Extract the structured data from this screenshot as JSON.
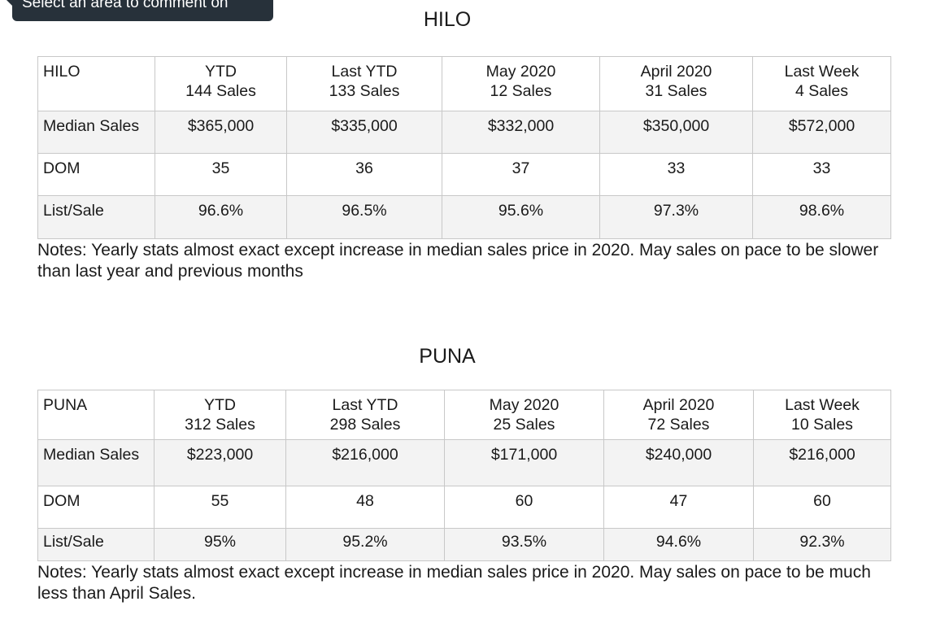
{
  "tooltip": {
    "text": "Select an area to comment on"
  },
  "sections": [
    {
      "id": "hilo",
      "title": "HILO",
      "table": {
        "header": [
          {
            "line1": "HILO",
            "line2": ""
          },
          {
            "line1": "YTD",
            "line2": "144 Sales"
          },
          {
            "line1": "Last YTD",
            "line2": "133 Sales"
          },
          {
            "line1": "May 2020",
            "line2": "12 Sales"
          },
          {
            "line1": "April 2020",
            "line2": "31 Sales"
          },
          {
            "line1": "Last Week",
            "line2": "4 Sales"
          }
        ],
        "rows": [
          {
            "label": "Median Sales",
            "values": [
              "$365,000",
              "$335,000",
              "$332,000",
              "$350,000",
              "$572,000"
            ]
          },
          {
            "label": "DOM",
            "values": [
              "35",
              "36",
              "37",
              "33",
              "33"
            ]
          },
          {
            "label": "List/Sale",
            "values": [
              "96.6%",
              "96.5%",
              "95.6%",
              "97.3%",
              "98.6%"
            ]
          }
        ]
      },
      "notes": "Notes: Yearly stats almost exact except increase in median sales price in 2020. May sales on pace to be slower than last year and previous months"
    },
    {
      "id": "puna",
      "title": "PUNA",
      "table": {
        "header": [
          {
            "line1": "PUNA",
            "line2": ""
          },
          {
            "line1": "YTD",
            "line2": "312 Sales"
          },
          {
            "line1": "Last YTD",
            "line2": "298 Sales"
          },
          {
            "line1": "May 2020",
            "line2": "25 Sales"
          },
          {
            "line1": "April 2020",
            "line2": "72 Sales"
          },
          {
            "line1": "Last Week",
            "line2": "10 Sales"
          }
        ],
        "rows": [
          {
            "label": "Median Sales",
            "values": [
              "$223,000",
              "$216,000",
              "$171,000",
              "$240,000",
              "$216,000"
            ]
          },
          {
            "label": "DOM",
            "values": [
              "55",
              "48",
              "60",
              "47",
              "60"
            ]
          },
          {
            "label": "List/Sale",
            "values": [
              "95%",
              "95.2%",
              "93.5%",
              "94.6%",
              "92.3%"
            ]
          }
        ]
      },
      "notes": "Notes: Yearly stats almost exact except increase in median sales price in 2020. May sales on pace to be much less than April Sales."
    }
  ]
}
